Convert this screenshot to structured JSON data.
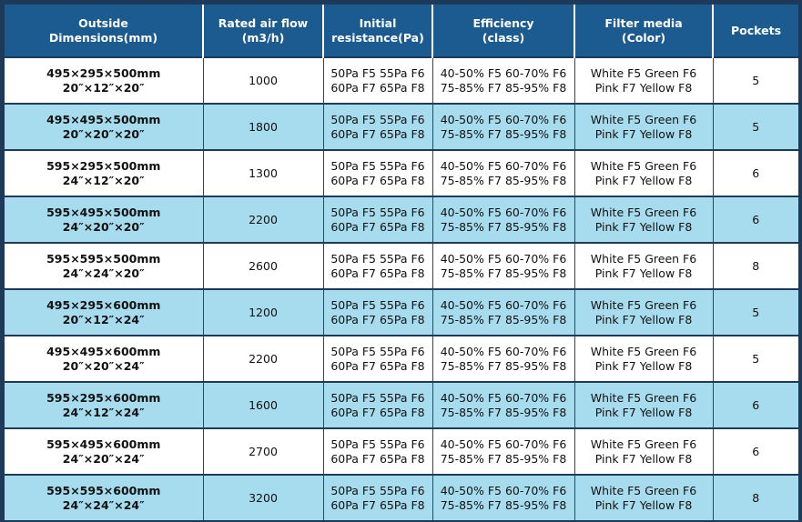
{
  "headers": [
    {
      "line1": "Outside",
      "line2": "Dimensions(mm)"
    },
    {
      "line1": "Rated air flow",
      "line2": "(m3/h)"
    },
    {
      "line1": "Initial",
      "line2": "resistance(Pa)"
    },
    {
      "line1": "Efficiency",
      "line2": "(class)"
    },
    {
      "line1": "Filter media",
      "line2": "(Color)"
    },
    {
      "line1": "Pockets",
      "line2": ""
    }
  ],
  "rows": [
    {
      "dim_mm": "495×295×500mm",
      "dim_in": "20″×12″×20″",
      "flow": "1000",
      "res1": "50Pa F5 55Pa F6",
      "res2": "60Pa F7 65Pa F8",
      "eff1": "40-50% F5 60-70% F6",
      "eff2": "75-85% F7 85-95% F8",
      "media1": "White F5 Green F6",
      "media2": "Pink F7 Yellow F8",
      "pockets": "5"
    },
    {
      "dim_mm": "495×495×500mm",
      "dim_in": "20″×20″×20″",
      "flow": "1800",
      "res1": "50Pa F5 55Pa F6",
      "res2": "60Pa F7 65Pa F8",
      "eff1": "40-50% F5 60-70% F6",
      "eff2": "75-85% F7 85-95% F8",
      "media1": "White F5 Green F6",
      "media2": "Pink F7 Yellow F8",
      "pockets": "5"
    },
    {
      "dim_mm": "595×295×500mm",
      "dim_in": "24″×12″×20″",
      "flow": "1300",
      "res1": "50Pa F5 55Pa F6",
      "res2": "60Pa F7 65Pa F8",
      "eff1": "40-50% F5 60-70% F6",
      "eff2": "75-85% F7 85-95% F8",
      "media1": "White F5 Green F6",
      "media2": "Pink F7 Yellow F8",
      "pockets": "6"
    },
    {
      "dim_mm": "595×495×500mm",
      "dim_in": "24″×20″×20″",
      "flow": "2200",
      "res1": "50Pa F5 55Pa F6",
      "res2": "60Pa F7 65Pa F8",
      "eff1": "40-50% F5 60-70% F6",
      "eff2": "75-85% F7 85-95% F8",
      "media1": "White F5 Green F6",
      "media2": "Pink F7 Yellow F8",
      "pockets": "6"
    },
    {
      "dim_mm": "595×595×500mm",
      "dim_in": "24″×24″×20″",
      "flow": "2600",
      "res1": "50Pa F5 55Pa F6",
      "res2": "60Pa F7 65Pa F8",
      "eff1": "40-50% F5 60-70% F6",
      "eff2": "75-85% F7 85-95% F8",
      "media1": "White F5 Green F6",
      "media2": "Pink F7 Yellow F8",
      "pockets": "8"
    },
    {
      "dim_mm": "495×295×600mm",
      "dim_in": "20″×12″×24″",
      "flow": "1200",
      "res1": "50Pa F5 55Pa F6",
      "res2": "60Pa F7 65Pa F8",
      "eff1": "40-50% F5 60-70% F6",
      "eff2": "75-85% F7 85-95% F8",
      "media1": "White F5 Green F6",
      "media2": "Pink F7 Yellow F8",
      "pockets": "5"
    },
    {
      "dim_mm": "495×495×600mm",
      "dim_in": "20″×20″×24″",
      "flow": "2200",
      "res1": "50Pa F5 55Pa F6",
      "res2": "60Pa F7 65Pa F8",
      "eff1": "40-50% F5 60-70% F6",
      "eff2": "75-85% F7 85-95% F8",
      "media1": "White F5 Green F6",
      "media2": "Pink F7 Yellow F8",
      "pockets": "5"
    },
    {
      "dim_mm": "595×295×600mm",
      "dim_in": "24″×12″×24″",
      "flow": "1600",
      "res1": "50Pa F5 55Pa F6",
      "res2": "60Pa F7 65Pa F8",
      "eff1": "40-50% F5 60-70% F6",
      "eff2": "75-85% F7 85-95% F8",
      "media1": "White F5 Green F6",
      "media2": "Pink F7 Yellow F8",
      "pockets": "6"
    },
    {
      "dim_mm": "595×495×600mm",
      "dim_in": "24″×20″×24″",
      "flow": "2700",
      "res1": "50Pa F5 55Pa F6",
      "res2": "60Pa F7 65Pa F8",
      "eff1": "40-50% F5 60-70% F6",
      "eff2": "75-85% F7 85-95% F8",
      "media1": "White F5 Green F6",
      "media2": "Pink F7 Yellow F8",
      "pockets": "6"
    },
    {
      "dim_mm": "595×595×600mm",
      "dim_in": "24″×24″×24″",
      "flow": "3200",
      "res1": "50Pa F5 55Pa F6",
      "res2": "60Pa F7 65Pa F8",
      "eff1": "40-50% F5 60-70% F6",
      "eff2": "75-85% F7 85-95% F8",
      "media1": "White F5 Green F6",
      "media2": "Pink F7 Yellow F8",
      "pockets": "8"
    }
  ],
  "colors": {
    "header_bg": "#1b5b8f",
    "frame": "#1d3a5a",
    "row_alt": "#a7dcef",
    "row_plain": "#ffffff"
  }
}
